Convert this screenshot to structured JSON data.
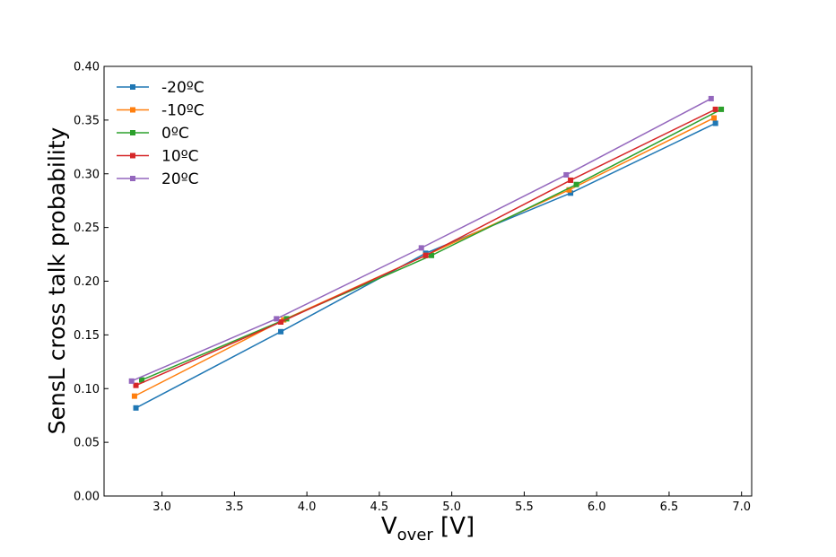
{
  "chart_data": {
    "type": "line",
    "title": "",
    "xlabel": "V",
    "xlabel_sub": "over",
    "xlabel_unit": " [V]",
    "ylabel": "SensL cross talk probability",
    "xlim": [
      2.6,
      7.07
    ],
    "ylim": [
      0.0,
      0.4
    ],
    "xticks": [
      "3.0",
      "3.5",
      "4.0",
      "4.5",
      "5.0",
      "5.5",
      "6.0",
      "6.5",
      "7.0"
    ],
    "yticks": [
      "0.00",
      "0.05",
      "0.10",
      "0.15",
      "0.20",
      "0.25",
      "0.30",
      "0.35",
      "0.40"
    ],
    "grid": false,
    "legend_position": "top-left",
    "series": [
      {
        "name": "-20ºC",
        "color": "#1f77b4",
        "x": [
          2.82,
          3.82,
          4.82,
          5.82,
          6.82
        ],
        "y": [
          0.082,
          0.153,
          0.226,
          0.282,
          0.347
        ]
      },
      {
        "name": "-10ºC",
        "color": "#ff7f0e",
        "x": [
          2.81,
          3.84,
          4.82,
          5.81,
          6.81
        ],
        "y": [
          0.093,
          0.164,
          0.224,
          0.285,
          0.352
        ]
      },
      {
        "name": "0ºC",
        "color": "#2ca02c",
        "x": [
          2.86,
          3.86,
          4.86,
          5.86,
          6.86
        ],
        "y": [
          0.108,
          0.165,
          0.224,
          0.29,
          0.36
        ]
      },
      {
        "name": "10ºC",
        "color": "#d62728",
        "x": [
          2.82,
          3.82,
          4.82,
          5.82,
          6.82
        ],
        "y": [
          0.103,
          0.162,
          0.224,
          0.294,
          0.36
        ]
      },
      {
        "name": "20ºC",
        "color": "#9467bd",
        "x": [
          2.79,
          3.79,
          4.79,
          5.79,
          6.79
        ],
        "y": [
          0.107,
          0.165,
          0.231,
          0.299,
          0.37
        ]
      }
    ]
  }
}
